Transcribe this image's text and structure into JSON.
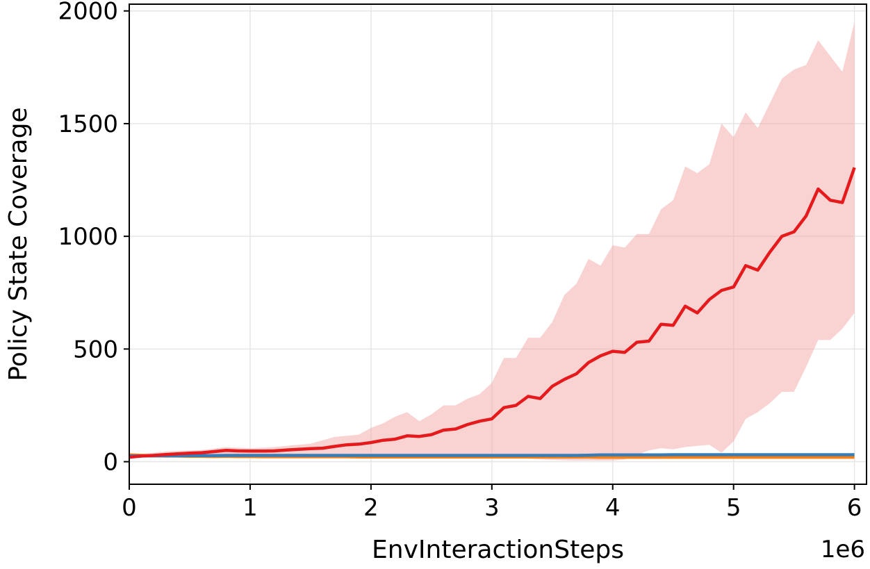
{
  "chart_data": {
    "type": "line",
    "title": "",
    "xlabel": "EnvInteractionSteps",
    "ylabel": "Policy State Coverage",
    "x_scale_label": "1e6",
    "xlim": [
      0,
      6.1
    ],
    "ylim": [
      -100,
      2030
    ],
    "xticks": [
      0,
      1,
      2,
      3,
      4,
      5,
      6
    ],
    "xtick_labels": [
      "0",
      "1",
      "2",
      "3",
      "4",
      "5",
      "6"
    ],
    "yticks": [
      0,
      500,
      1000,
      1500,
      2000
    ],
    "ytick_labels": [
      "0",
      "500",
      "1000",
      "1500",
      "2000"
    ],
    "grid": true,
    "legend": "none",
    "x": [
      0,
      0.1,
      0.2,
      0.3,
      0.4,
      0.5,
      0.6,
      0.7,
      0.8,
      0.9,
      1.0,
      1.1,
      1.2,
      1.3,
      1.4,
      1.5,
      1.6,
      1.7,
      1.8,
      1.9,
      2.0,
      2.1,
      2.2,
      2.3,
      2.4,
      2.5,
      2.6,
      2.7,
      2.8,
      2.9,
      3.0,
      3.1,
      3.2,
      3.3,
      3.4,
      3.5,
      3.6,
      3.7,
      3.8,
      3.9,
      4.0,
      4.1,
      4.2,
      4.3,
      4.4,
      4.5,
      4.6,
      4.7,
      4.8,
      4.9,
      5.0,
      5.1,
      5.2,
      5.3,
      5.4,
      5.5,
      5.6,
      5.7,
      5.8,
      5.9,
      6.0
    ],
    "series": [
      {
        "color": "#e41a1c",
        "band_color": "#f4a5a5",
        "values": [
          20,
          25,
          28,
          32,
          35,
          38,
          40,
          45,
          50,
          48,
          47,
          47,
          48,
          52,
          55,
          58,
          60,
          68,
          75,
          78,
          85,
          95,
          100,
          115,
          112,
          120,
          140,
          145,
          165,
          180,
          190,
          240,
          250,
          290,
          280,
          335,
          365,
          390,
          440,
          470,
          490,
          485,
          530,
          535,
          610,
          605,
          690,
          660,
          720,
          760,
          775,
          870,
          850,
          930,
          1000,
          1020,
          1090,
          1210,
          1160,
          1150,
          1305
        ],
        "lower": [
          15,
          18,
          20,
          22,
          24,
          25,
          26,
          28,
          30,
          30,
          30,
          30,
          30,
          30,
          30,
          30,
          30,
          28,
          28,
          28,
          28,
          28,
          27,
          27,
          26,
          26,
          25,
          24,
          23,
          22,
          20,
          18,
          16,
          14,
          10,
          8,
          6,
          5,
          5,
          5,
          5,
          10,
          30,
          50,
          60,
          55,
          65,
          70,
          75,
          40,
          90,
          190,
          220,
          260,
          310,
          310,
          420,
          540,
          540,
          590,
          660
        ],
        "upper": [
          30,
          35,
          40,
          45,
          48,
          50,
          52,
          58,
          65,
          62,
          60,
          62,
          65,
          70,
          75,
          80,
          95,
          110,
          115,
          120,
          150,
          170,
          200,
          220,
          180,
          210,
          250,
          250,
          280,
          300,
          350,
          460,
          460,
          550,
          550,
          620,
          740,
          790,
          900,
          870,
          960,
          950,
          1010,
          1010,
          1120,
          1160,
          1310,
          1280,
          1320,
          1500,
          1440,
          1550,
          1480,
          1590,
          1700,
          1740,
          1760,
          1870,
          1800,
          1730,
          1950
        ]
      },
      {
        "color": "#ff7f0e",
        "band_color": "#ffd9a8",
        "values": [
          30,
          28,
          26,
          25,
          25,
          24,
          24,
          23,
          24,
          23,
          23,
          22,
          22,
          22,
          22,
          22,
          22,
          22,
          22,
          21,
          21,
          21,
          21,
          21,
          21,
          21,
          21,
          21,
          21,
          21,
          21,
          21,
          21,
          21,
          21,
          21,
          21,
          21,
          21,
          20,
          20,
          20,
          20,
          20,
          20,
          20,
          20,
          20,
          20,
          20,
          20,
          20,
          20,
          20,
          20,
          20,
          20,
          20,
          20,
          20,
          20
        ],
        "lower": [
          22,
          21,
          20,
          19,
          19,
          18,
          18,
          17,
          18,
          17,
          17,
          16,
          16,
          16,
          16,
          16,
          16,
          16,
          16,
          15,
          15,
          15,
          15,
          15,
          15,
          15,
          15,
          15,
          15,
          15,
          15,
          15,
          15,
          15,
          15,
          15,
          15,
          15,
          15,
          14,
          14,
          14,
          14,
          14,
          14,
          14,
          14,
          14,
          14,
          14,
          14,
          14,
          14,
          14,
          14,
          14,
          14,
          14,
          14,
          14,
          14
        ],
        "upper": [
          38,
          35,
          33,
          31,
          31,
          30,
          30,
          29,
          30,
          29,
          29,
          28,
          28,
          28,
          28,
          28,
          28,
          28,
          28,
          27,
          27,
          27,
          27,
          27,
          27,
          27,
          27,
          27,
          27,
          27,
          27,
          27,
          27,
          27,
          27,
          27,
          27,
          27,
          27,
          26,
          26,
          26,
          26,
          26,
          26,
          26,
          26,
          26,
          26,
          26,
          26,
          26,
          26,
          26,
          26,
          26,
          26,
          26,
          26,
          26,
          26
        ]
      },
      {
        "color": "#377eb8",
        "band_color": "#a9c8e6",
        "values": [
          25,
          25,
          26,
          26,
          26,
          27,
          27,
          27,
          28,
          28,
          28,
          28,
          28,
          28,
          28,
          28,
          28,
          28,
          28,
          28,
          28,
          28,
          28,
          28,
          28,
          28,
          28,
          28,
          28,
          28,
          28,
          28,
          28,
          28,
          28,
          28,
          28,
          28,
          29,
          30,
          30,
          30,
          30,
          30,
          30,
          31,
          31,
          31,
          31,
          31,
          31,
          31,
          31,
          31,
          31,
          31,
          31,
          31,
          31,
          31,
          31
        ],
        "lower": [
          20,
          20,
          21,
          21,
          21,
          22,
          22,
          22,
          23,
          23,
          23,
          23,
          23,
          23,
          23,
          23,
          23,
          23,
          23,
          23,
          23,
          23,
          23,
          23,
          23,
          23,
          23,
          23,
          23,
          23,
          23,
          23,
          23,
          23,
          23,
          23,
          23,
          23,
          24,
          25,
          25,
          25,
          25,
          25,
          25,
          26,
          26,
          26,
          26,
          26,
          26,
          26,
          26,
          26,
          26,
          26,
          26,
          26,
          26,
          26,
          26
        ],
        "upper": [
          30,
          30,
          31,
          31,
          31,
          32,
          32,
          32,
          33,
          33,
          33,
          33,
          33,
          33,
          33,
          33,
          33,
          33,
          33,
          33,
          33,
          33,
          33,
          33,
          33,
          33,
          33,
          33,
          33,
          33,
          33,
          33,
          33,
          33,
          33,
          33,
          33,
          33,
          34,
          35,
          35,
          35,
          35,
          35,
          35,
          36,
          36,
          36,
          36,
          36,
          36,
          36,
          36,
          36,
          36,
          36,
          36,
          36,
          36,
          36,
          36
        ]
      }
    ]
  }
}
